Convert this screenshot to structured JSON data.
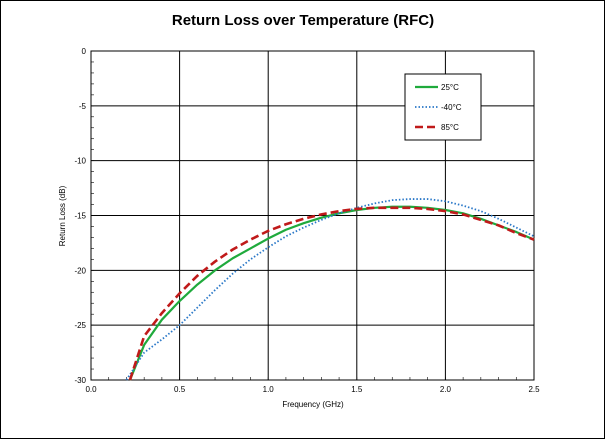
{
  "chart_data": {
    "type": "line",
    "title": "Return Loss over Temperature (RFC)",
    "xlabel": "Frequency (GHz)",
    "ylabel": "Return Loss (dB)",
    "xlim": [
      0,
      2.5
    ],
    "ylim": [
      -30,
      0
    ],
    "xticks": [
      "0.0",
      "0.5",
      "1.0",
      "1.5",
      "2.0",
      "2.5"
    ],
    "yticks": [
      "0",
      "-5",
      "-10",
      "-15",
      "-20",
      "-25",
      "-30"
    ],
    "grid": true,
    "legend_position": "top-right",
    "series": [
      {
        "name": "25°C",
        "color": "#1faa3c",
        "style": "solid",
        "x": [
          0.22,
          0.3,
          0.4,
          0.5,
          0.6,
          0.7,
          0.8,
          0.9,
          1.0,
          1.1,
          1.2,
          1.3,
          1.4,
          1.5,
          1.6,
          1.7,
          1.8,
          1.9,
          2.0,
          2.1,
          2.2,
          2.3,
          2.4,
          2.5
        ],
        "y": [
          -30.0,
          -26.8,
          -24.5,
          -22.8,
          -21.3,
          -20.0,
          -18.9,
          -18.0,
          -17.1,
          -16.3,
          -15.7,
          -15.2,
          -14.8,
          -14.5,
          -14.3,
          -14.2,
          -14.2,
          -14.3,
          -14.5,
          -14.8,
          -15.3,
          -15.9,
          -16.5,
          -17.2
        ]
      },
      {
        "name": "-40°C",
        "color": "#2a78c8",
        "style": "dotted",
        "x": [
          0.2,
          0.3,
          0.4,
          0.5,
          0.6,
          0.7,
          0.8,
          0.9,
          1.0,
          1.1,
          1.2,
          1.3,
          1.4,
          1.5,
          1.6,
          1.7,
          1.8,
          1.9,
          2.0,
          2.1,
          2.2,
          2.3,
          2.4,
          2.5
        ],
        "y": [
          -30.0,
          -27.5,
          -26.3,
          -25.0,
          -23.4,
          -21.8,
          -20.3,
          -19.0,
          -17.9,
          -16.9,
          -16.1,
          -15.4,
          -14.8,
          -14.3,
          -13.9,
          -13.6,
          -13.5,
          -13.5,
          -13.7,
          -14.1,
          -14.6,
          -15.3,
          -16.1,
          -16.9
        ]
      },
      {
        "name": "85°C",
        "color": "#c01a1a",
        "style": "dashed",
        "x": [
          0.22,
          0.3,
          0.4,
          0.5,
          0.6,
          0.7,
          0.8,
          0.9,
          1.0,
          1.1,
          1.2,
          1.3,
          1.4,
          1.5,
          1.6,
          1.7,
          1.8,
          1.9,
          2.0,
          2.1,
          2.2,
          2.3,
          2.4,
          2.5
        ],
        "y": [
          -30.0,
          -26.0,
          -23.9,
          -22.1,
          -20.5,
          -19.2,
          -18.1,
          -17.2,
          -16.4,
          -15.8,
          -15.3,
          -14.9,
          -14.6,
          -14.4,
          -14.3,
          -14.3,
          -14.3,
          -14.4,
          -14.6,
          -14.9,
          -15.4,
          -15.9,
          -16.6,
          -17.2
        ]
      }
    ]
  }
}
